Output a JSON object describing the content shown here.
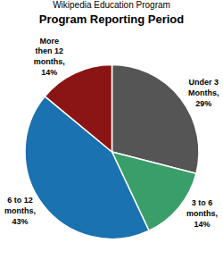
{
  "chart_data": {
    "type": "pie",
    "subtitle": "Wikipedia Education Program",
    "title": "Program Reporting Period",
    "categories": [
      "Under 3\nMonths,\n29%",
      "3 to 6\nmonths,\n14%",
      "6 to 12\nmonths,\n43%",
      "More\nthen 12\nmonths,\n14%"
    ],
    "values": [
      29,
      14,
      43,
      14
    ],
    "colors": [
      "#555555",
      "#3a9e6a",
      "#1a72b0",
      "#8b1515"
    ],
    "legend": false
  }
}
